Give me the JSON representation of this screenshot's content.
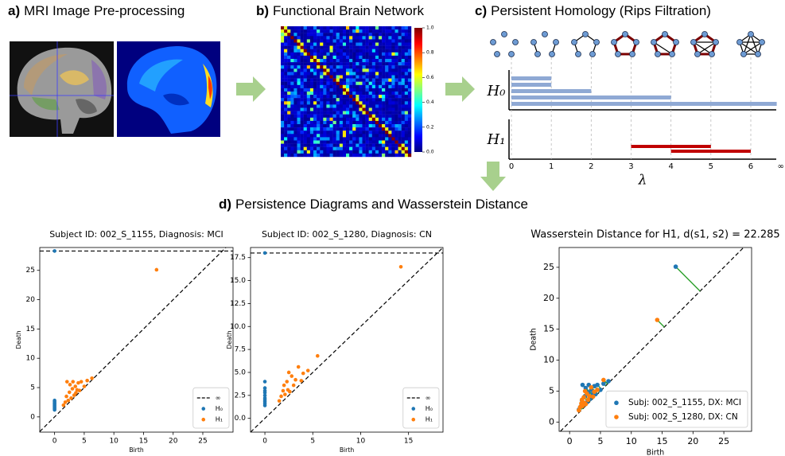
{
  "panels": [
    {
      "label": "a)",
      "title": "MRI Image Pre-processing"
    },
    {
      "label": "b)",
      "title": "Functional Brain Network"
    },
    {
      "label": "c)",
      "title": "Persistent Homology (Rips Filtration)"
    },
    {
      "label": "d)",
      "title": "Persistence Diagrams and Wasserstein Distance"
    }
  ],
  "colorbar": {
    "lim": [
      0,
      1
    ],
    "ticks": [
      {
        "value": 0,
        "label": "0.0"
      },
      0.2,
      0.4,
      0.6,
      0.8,
      {
        "value": 1,
        "label": "1.0"
      }
    ]
  },
  "chart_data": [
    {
      "type": "barcode",
      "xlabel": "λ",
      "xlim": [
        0,
        6.65
      ],
      "xticks": [
        0,
        1,
        2,
        3,
        4,
        5,
        6,
        {
          "value": 6.75,
          "label": "∞"
        }
      ],
      "series": [
        {
          "name": "H₀",
          "color": "#8fa9d4",
          "births": [
            0,
            0,
            0,
            0,
            0
          ],
          "deaths": [
            1,
            1,
            2,
            4,
            6.65
          ]
        },
        {
          "name": "H₁",
          "color": "#c00000",
          "births": [
            3,
            4
          ],
          "deaths": [
            5,
            6
          ]
        }
      ]
    },
    {
      "type": "scatter",
      "title": "Subject ID: 002_S_1155, Diagnosis: MCI",
      "xlabel": "Birth",
      "ylabel": "Death",
      "xlim": [
        -2.5,
        30.1
      ],
      "ylim": [
        -2.6,
        28.9
      ],
      "xticks": [
        0,
        5,
        10,
        15,
        20,
        25
      ],
      "yticks": [
        0,
        5,
        10,
        15,
        20,
        25
      ],
      "infinity": {
        "value": 28.3,
        "label": "∞"
      },
      "legend": "lower right",
      "series": [
        {
          "name": "H₀",
          "color": "#1f77b4",
          "x": [
            0,
            0,
            0,
            0,
            0,
            0,
            0,
            0,
            0,
            0
          ],
          "y": [
            1.2,
            1.4,
            1.6,
            1.8,
            2.0,
            2.2,
            2.4,
            2.6,
            2.8,
            28.3
          ]
        },
        {
          "name": "H₁",
          "color": "#ff7f0e",
          "x": [
            1.5,
            1.8,
            2,
            2.1,
            2.3,
            2.5,
            2.6,
            2.8,
            3,
            3.1,
            3.3,
            3.5,
            3.6,
            3.8,
            4,
            4.2,
            4.5,
            5,
            5.5,
            6.3,
            17.2
          ],
          "y": [
            2,
            2.5,
            3.5,
            6,
            2.8,
            4.2,
            5.5,
            3.2,
            4.8,
            6,
            3.7,
            5.2,
            4.1,
            4.6,
            5.8,
            4.5,
            6,
            5.2,
            6.2,
            6.6,
            25.1
          ]
        }
      ]
    },
    {
      "type": "scatter",
      "title": "Subject ID: 002_S_1280, Diagnosis: CN",
      "xlabel": "Birth",
      "ylabel": "Death",
      "xlim": [
        -1.5,
        18.6
      ],
      "ylim": [
        -1.5,
        18.6
      ],
      "xticks": [
        0,
        5,
        10,
        15
      ],
      "yticks": [
        {
          "value": 0,
          "label": "0.0"
        },
        2.5,
        {
          "value": 5,
          "label": "5.0"
        },
        7.5,
        {
          "value": 10,
          "label": "10.0"
        },
        12.5,
        {
          "value": 15,
          "label": "15.0"
        },
        17.5
      ],
      "infinity": {
        "value": 18,
        "label": "∞"
      },
      "legend": "lower right",
      "series": [
        {
          "name": "H₀",
          "color": "#1f77b4",
          "x": [
            0,
            0,
            0,
            0,
            0,
            0,
            0,
            0,
            0,
            0,
            0
          ],
          "y": [
            1.4,
            1.6,
            1.8,
            2,
            2.2,
            2.5,
            2.8,
            3,
            3.3,
            4,
            18
          ]
        },
        {
          "name": "H₁",
          "color": "#ff7f0e",
          "x": [
            1.5,
            1.7,
            1.9,
            2,
            2.1,
            2.3,
            2.4,
            2.5,
            2.6,
            2.8,
            3,
            3.2,
            3.5,
            3.8,
            4,
            4.5,
            5.5,
            14.2
          ],
          "y": [
            1.9,
            2.4,
            3,
            3.6,
            2.6,
            4,
            3.1,
            5,
            2.9,
            4.6,
            3.6,
            4.2,
            5.6,
            4.1,
            4.9,
            5.2,
            6.8,
            16.5
          ]
        }
      ]
    },
    {
      "type": "scatter",
      "title": "Wasserstein Distance for H1, d(s1, s2) = 22.285",
      "xlabel": "Birth",
      "ylabel": "Death",
      "xlim": [
        -1.7,
        29.5
      ],
      "ylim": [
        -1.5,
        28.2
      ],
      "xticks": [
        0,
        5,
        10,
        15,
        20,
        25
      ],
      "yticks": [
        0,
        5,
        10,
        15,
        20,
        25
      ],
      "matching_color": "#2ca02c",
      "legend": "lower right",
      "series": [
        {
          "name": "Subj: 002_S_1155, DX: MCI",
          "color": "#1f77b4",
          "x": [
            1.5,
            1.8,
            2,
            2.1,
            2.3,
            2.5,
            2.6,
            2.8,
            3,
            3.1,
            3.3,
            3.5,
            3.6,
            3.8,
            4,
            4.2,
            4.5,
            5,
            5.5,
            6.3,
            17.2
          ],
          "y": [
            2,
            2.5,
            3.5,
            6,
            2.8,
            4.2,
            5.5,
            3.2,
            4.8,
            6,
            3.7,
            5.2,
            4.1,
            4.6,
            5.8,
            4.5,
            6,
            5.2,
            6.2,
            6.6,
            25.1
          ]
        },
        {
          "name": "Subj: 002_S_1280, DX: CN",
          "color": "#ff7f0e",
          "x": [
            1.5,
            1.7,
            1.9,
            2,
            2.1,
            2.3,
            2.4,
            2.5,
            2.6,
            2.8,
            3,
            3.2,
            3.5,
            3.8,
            4,
            4.5,
            5.5,
            14.2
          ],
          "y": [
            1.9,
            2.4,
            3,
            3.6,
            2.6,
            4,
            3.1,
            5,
            2.9,
            4.6,
            3.6,
            4.2,
            5.6,
            4.1,
            4.9,
            5.2,
            6.8,
            16.5
          ]
        }
      ]
    }
  ]
}
